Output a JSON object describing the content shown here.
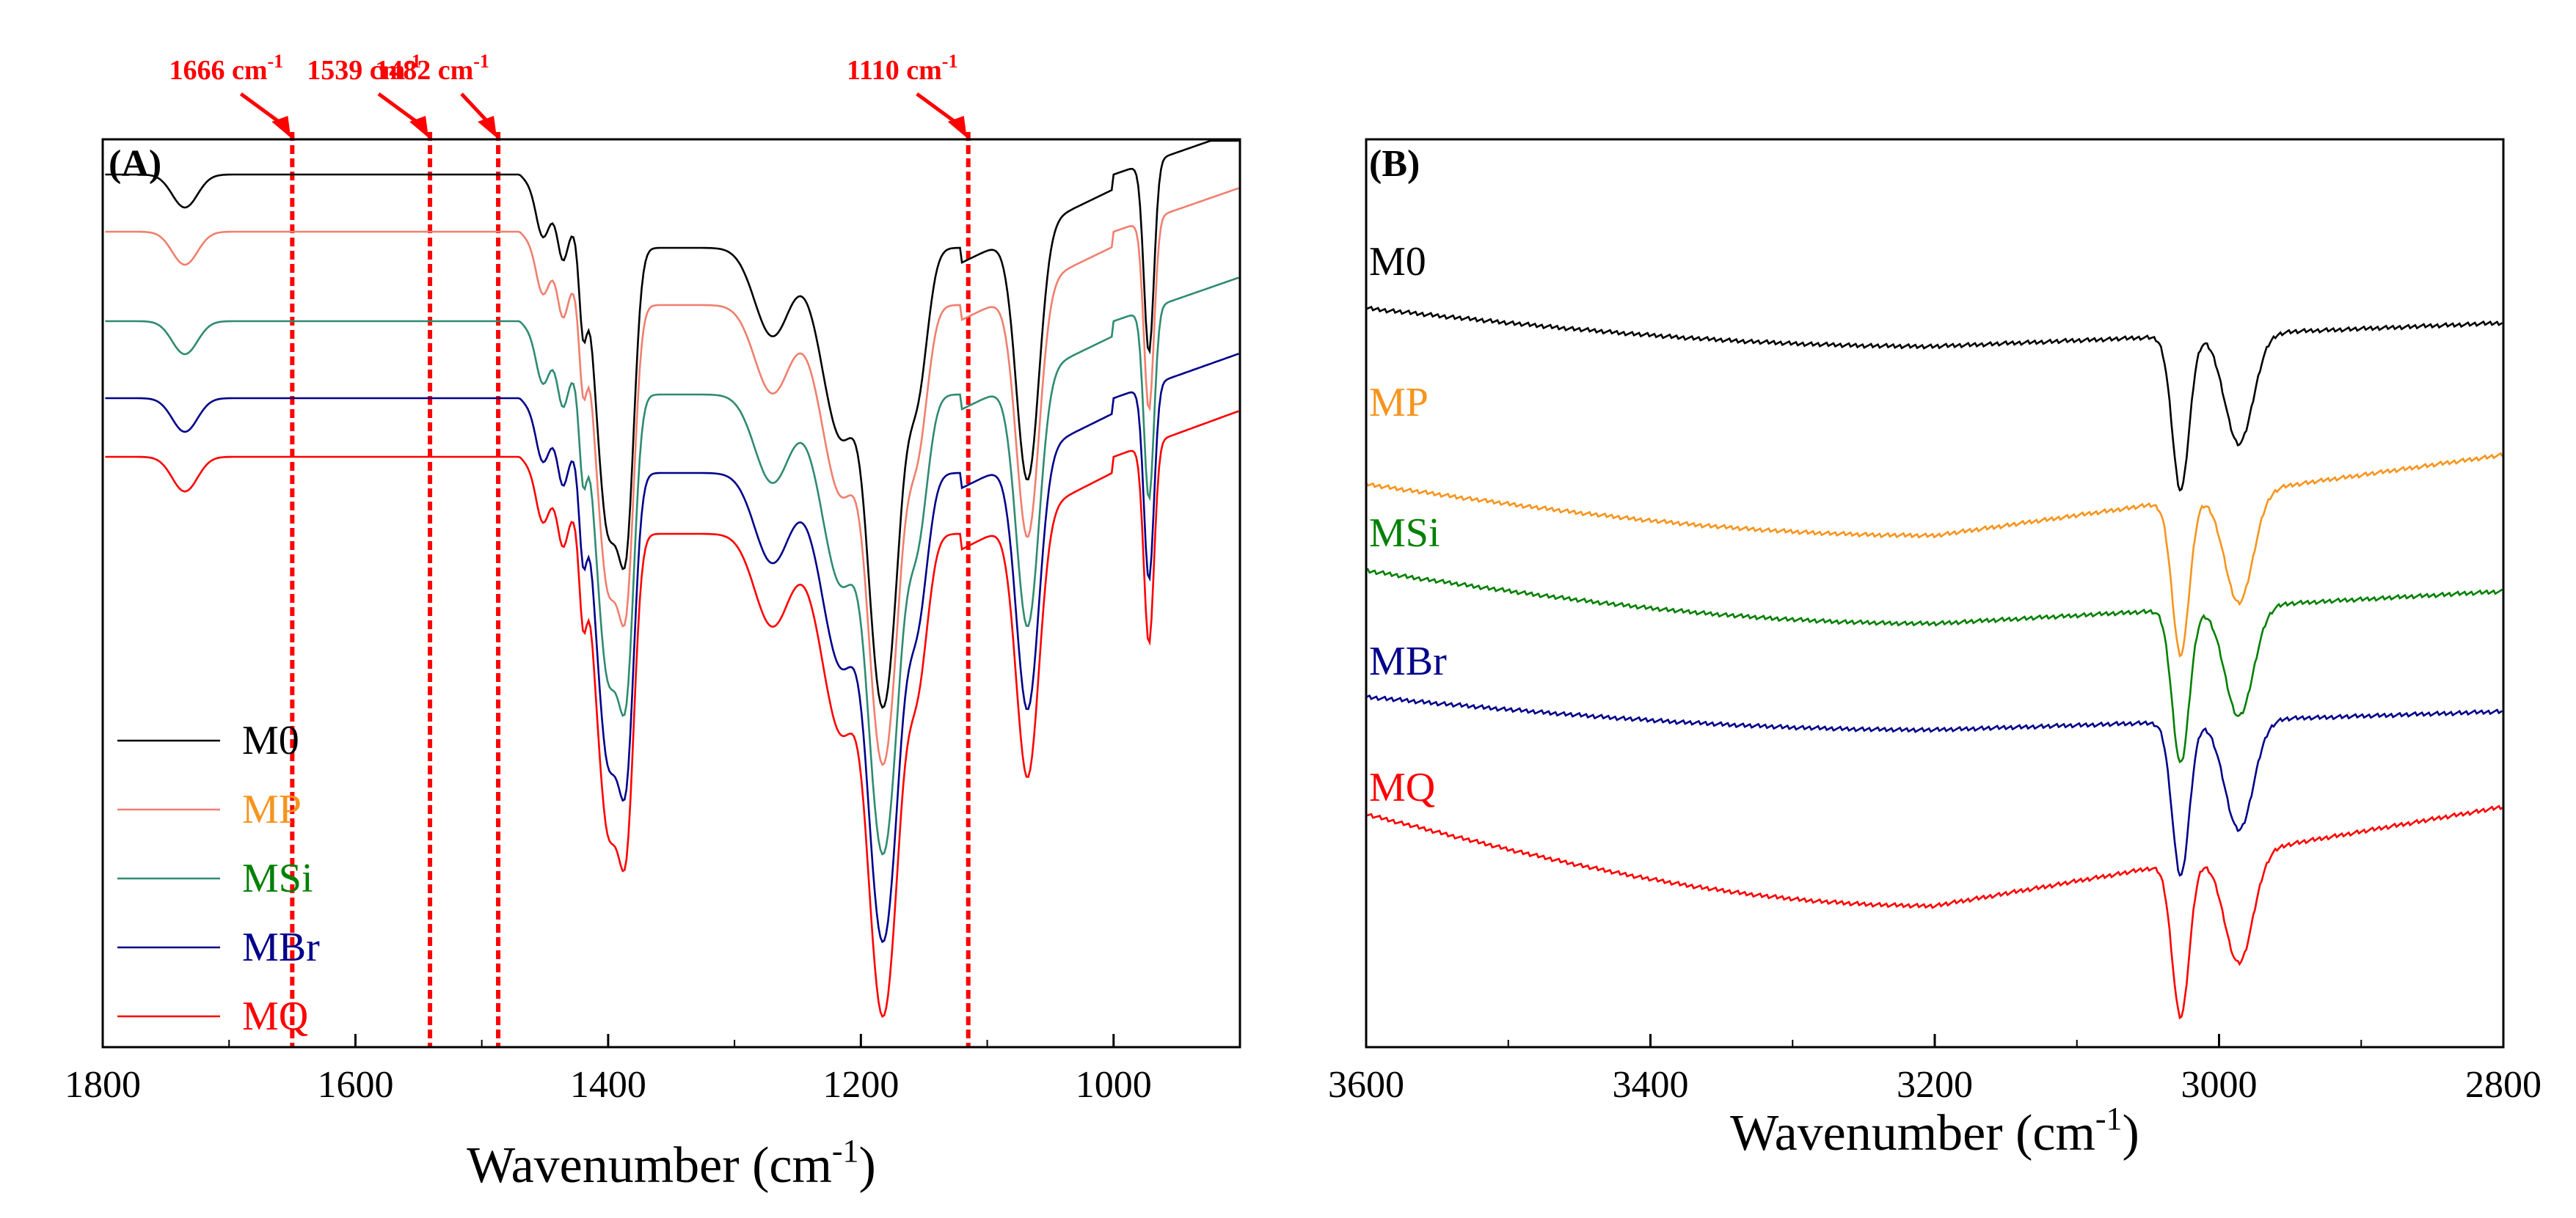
{
  "chart_data": [
    {
      "type": "line",
      "panel_label": "(A)",
      "xlabel": "Wavenumber",
      "xlabel_unit_base": "(cm",
      "xlabel_unit_sup": "-1",
      "xlabel_unit_end": ")",
      "ylabel": "",
      "xlim": [
        1800,
        900
      ],
      "x_reversed": true,
      "x_ticks": [
        1800,
        1600,
        1400,
        1200,
        1000
      ],
      "x_tick_labels": [
        "1800",
        "1600",
        "1400",
        "1200",
        "1000"
      ],
      "legend_position": "bottom-left",
      "annotations": [
        {
          "x": 1650,
          "label": "1666 cm",
          "sup": "-1"
        },
        {
          "x": 1541,
          "label": "1539 cm",
          "sup": "-1"
        },
        {
          "x": 1487,
          "label": "1482 cm",
          "sup": "-1"
        },
        {
          "x": 1115,
          "label": "1110 cm",
          "sup": "-1"
        }
      ],
      "series": [
        {
          "name": "M0",
          "color": "#000000",
          "offset": 0,
          "scale": 1.0
        },
        {
          "name": "MP",
          "color": "#f07f6e",
          "offset": 78,
          "scale": 1.0
        },
        {
          "name": "MSi",
          "color": "#2e8b70",
          "offset": 200,
          "scale": 1.0
        },
        {
          "name": "MBr",
          "color": "#00008b",
          "offset": 305,
          "scale": 1.02
        },
        {
          "name": "MQ",
          "color": "#ff0000",
          "offset": 385,
          "scale": 1.05
        }
      ],
      "legend": [
        {
          "label": "M0",
          "color": "#000000",
          "text_color": "#000000"
        },
        {
          "label": "MP",
          "color": "#f07f6e",
          "text_color": "#f7941d"
        },
        {
          "label": "MSi",
          "color": "#2e8b70",
          "text_color": "#008000"
        },
        {
          "label": "MBr",
          "color": "#00008b",
          "text_color": "#00008b"
        },
        {
          "label": "MQ",
          "color": "#ff0000",
          "text_color": "#ff0000"
        }
      ]
    },
    {
      "type": "line",
      "panel_label": "(B)",
      "xlabel": "Wavenumber",
      "xlabel_unit_base": "(cm",
      "xlabel_unit_sup": "-1",
      "xlabel_unit_end": ")",
      "ylabel": "",
      "xlim": [
        3600,
        2800
      ],
      "x_reversed": true,
      "x_ticks": [
        3600,
        3400,
        3200,
        3000,
        2800
      ],
      "x_tick_labels": [
        "3600",
        "3400",
        "3200",
        "3000",
        "2800"
      ],
      "series": [
        {
          "name": "M0",
          "color": "#000000",
          "text_color": "#000000"
        },
        {
          "name": "MP",
          "color": "#f7941d",
          "text_color": "#f7941d"
        },
        {
          "name": "MSi",
          "color": "#008000",
          "text_color": "#008000"
        },
        {
          "name": "MBr",
          "color": "#00008b",
          "text_color": "#00008b"
        },
        {
          "name": "MQ",
          "color": "#ff0000",
          "text_color": "#ff0000"
        }
      ]
    }
  ]
}
